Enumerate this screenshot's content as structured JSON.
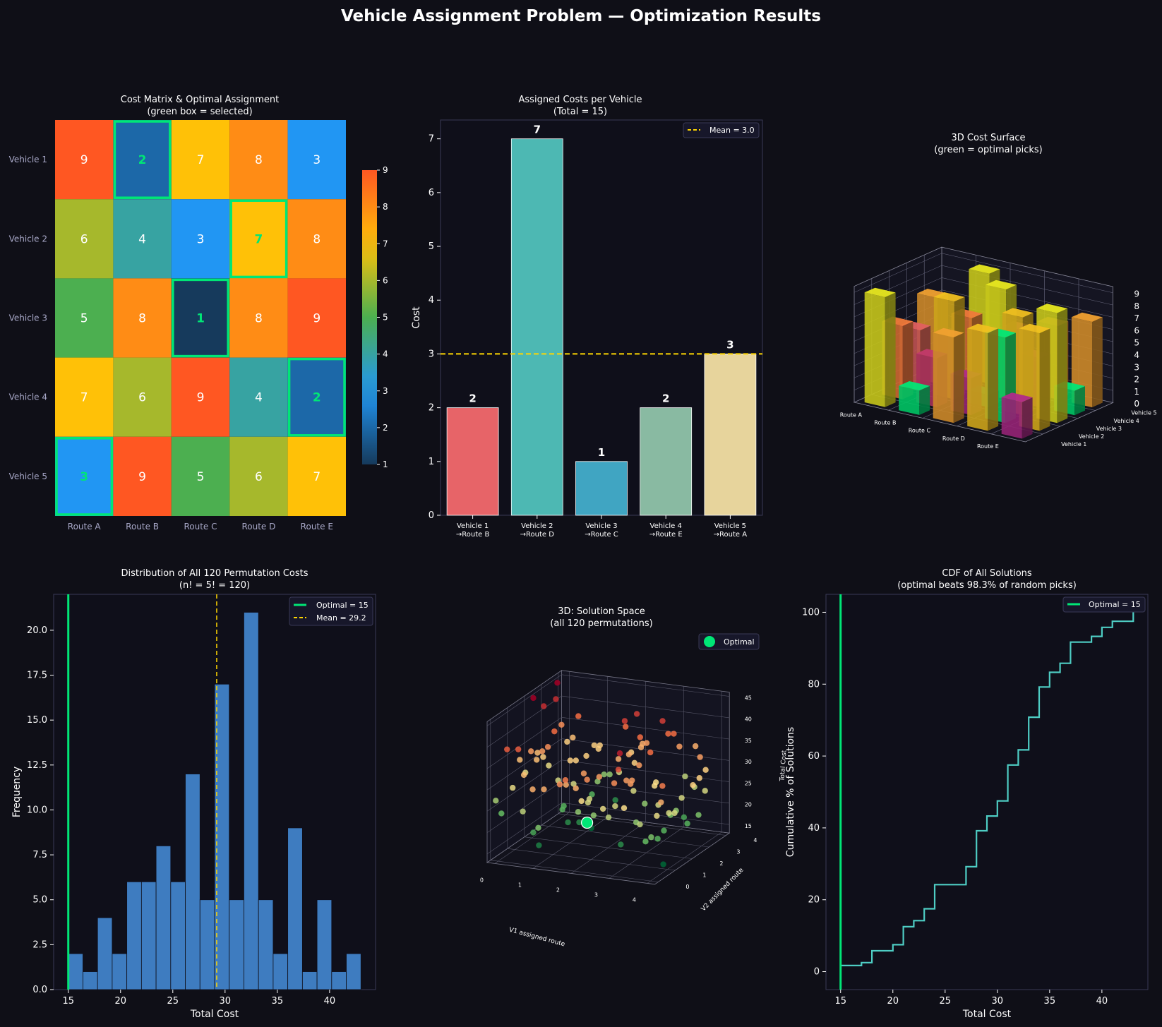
{
  "figure": {
    "title": "Vehicle Assignment Problem — Optimization Results",
    "background": "#0f0f17",
    "panel_background": "#0f0f1a",
    "accent_green": "#00e676",
    "accent_yellow": "#ffd600"
  },
  "chart_data": [
    {
      "id": "cost-matrix",
      "type": "heatmap",
      "title": "Cost Matrix & Optimal Assignment",
      "subtitle": "(green box = selected)",
      "rows": [
        "Vehicle 1",
        "Vehicle 2",
        "Vehicle 3",
        "Vehicle 4",
        "Vehicle 5"
      ],
      "columns": [
        "Route A",
        "Route B",
        "Route C",
        "Route D",
        "Route E"
      ],
      "values": [
        [
          9,
          2,
          7,
          8,
          3
        ],
        [
          6,
          4,
          3,
          7,
          8
        ],
        [
          5,
          8,
          1,
          8,
          9
        ],
        [
          7,
          6,
          9,
          4,
          2
        ],
        [
          3,
          9,
          5,
          6,
          7
        ]
      ],
      "selected": [
        [
          0,
          1
        ],
        [
          1,
          3
        ],
        [
          2,
          2
        ],
        [
          3,
          4
        ],
        [
          4,
          0
        ]
      ],
      "colorbar": {
        "min": 1,
        "max": 9,
        "ticks": [
          "1",
          "2",
          "3",
          "4",
          "5",
          "6",
          "7",
          "8",
          "9"
        ]
      }
    },
    {
      "id": "assigned-costs",
      "type": "bar",
      "title": "Assigned Costs per Vehicle",
      "subtitle": "(Total = 15)",
      "categories": [
        "Vehicle 1",
        "Vehicle 2",
        "Vehicle 3",
        "Vehicle 4",
        "Vehicle 5"
      ],
      "category_sublabels": [
        "→Route B",
        "→Route D",
        "→Route C",
        "→Route E",
        "→Route A"
      ],
      "values": [
        2,
        7,
        1,
        2,
        3
      ],
      "value_labels": [
        "2",
        "7",
        "1",
        "2",
        "3"
      ],
      "colors": [
        "#e76468",
        "#4db8b3",
        "#40a5c2",
        "#89baa2",
        "#e7d49c"
      ],
      "mean": 3.0,
      "legend": "Mean = 3.0",
      "ylabel": "Cost",
      "ylim": [
        0,
        7.35
      ],
      "yticks": [
        "0",
        "1",
        "2",
        "3",
        "4",
        "5",
        "6",
        "7"
      ]
    },
    {
      "id": "cost-surface",
      "type": "bar3d",
      "title": "3D Cost Surface",
      "subtitle": "(green = optimal picks)",
      "x_labels": [
        "Route A",
        "Route B",
        "Route C",
        "Route D",
        "Route E"
      ],
      "y_labels": [
        "Vehicle 1",
        "Vehicle 2",
        "Vehicle 3",
        "Vehicle 4",
        "Vehicle 5"
      ],
      "z_ticks": [
        "0",
        "1",
        "2",
        "3",
        "4",
        "5",
        "6",
        "7",
        "8",
        "9"
      ],
      "values_ref": "cost-matrix"
    },
    {
      "id": "permutation-hist",
      "type": "bar",
      "title": "Distribution of All 120 Permutation Costs",
      "subtitle": "(n! = 5! = 120)",
      "bin_start": 15,
      "bin_width": 1.4,
      "values": [
        2,
        1,
        4,
        2,
        6,
        6,
        8,
        6,
        12,
        5,
        17,
        5,
        21,
        5,
        2,
        9,
        1,
        5,
        1,
        2
      ],
      "optimal": 15,
      "mean": 29.2,
      "legend": [
        "Optimal = 15",
        "Mean = 29.2"
      ],
      "xlabel": "Total Cost",
      "ylabel": "Frequency",
      "xlim": [
        13.6,
        44.4
      ],
      "ylim": [
        0,
        22
      ],
      "xticks": [
        "15",
        "20",
        "25",
        "30",
        "35",
        "40"
      ],
      "yticks": [
        "0.0",
        "2.5",
        "5.0",
        "7.5",
        "10.0",
        "12.5",
        "15.0",
        "17.5",
        "20.0"
      ]
    },
    {
      "id": "solution-space",
      "type": "scatter3d",
      "title": "3D: Solution Space",
      "subtitle": "(all 120 permutations)",
      "legend": "Optimal",
      "xlabel": "V1 assigned route",
      "ylabel": "V2 assigned route",
      "zlabel": "Total Cost",
      "xticks": [
        "0",
        "1",
        "2",
        "3",
        "4"
      ],
      "yticks": [
        "0",
        "1",
        "2",
        "3",
        "4"
      ],
      "zticks": [
        "15",
        "20",
        "25",
        "30",
        "35",
        "40",
        "45"
      ],
      "optimal_point": [
        1,
        3,
        15
      ]
    },
    {
      "id": "cdf",
      "type": "line",
      "title": "CDF of All Solutions",
      "subtitle": "(optimal beats 98.3% of random picks)",
      "x": [
        15,
        17,
        18,
        20,
        21,
        22,
        23,
        24,
        27,
        28,
        29,
        30,
        31,
        32,
        33,
        34,
        35,
        36,
        37,
        39,
        40,
        41,
        43
      ],
      "y": [
        1.7,
        2.5,
        5.8,
        7.5,
        12.5,
        14.2,
        17.5,
        24.2,
        29.2,
        39.2,
        43.3,
        47.5,
        57.5,
        61.7,
        70.8,
        79.2,
        83.3,
        85.8,
        91.7,
        93.3,
        95.8,
        97.5,
        100.0
      ],
      "optimal": 15,
      "legend": "Optimal = 15",
      "xlabel": "Total Cost",
      "ylabel": "Cumulative % of Solutions",
      "xlim": [
        13.6,
        44.4
      ],
      "ylim": [
        -5,
        105
      ],
      "xticks": [
        "15",
        "20",
        "25",
        "30",
        "35",
        "40"
      ],
      "yticks": [
        "0",
        "20",
        "40",
        "60",
        "80",
        "100"
      ]
    }
  ]
}
